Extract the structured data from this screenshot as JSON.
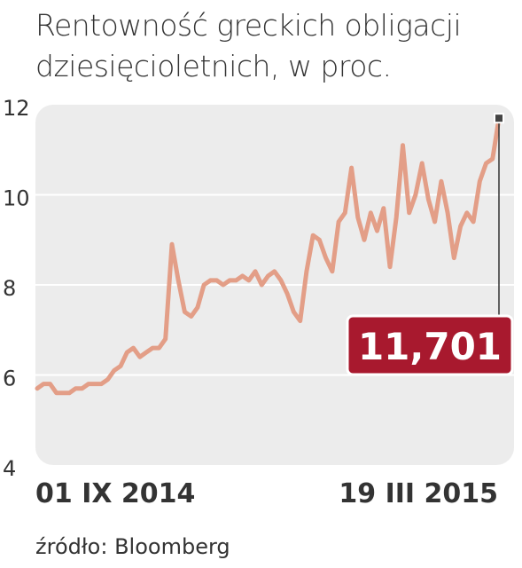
{
  "title": {
    "line1": "Rentowność greckich obligacji",
    "line2": "dziesięcioletnich, w proc."
  },
  "source": "źródło: Bloomberg",
  "colors": {
    "line": "#e39e87",
    "plot_bg": "#ececec",
    "grid": "#ffffff",
    "callout_bg": "#a8192e",
    "callout_text": "#ffffff",
    "text": "#333333"
  },
  "chart_data": {
    "type": "line",
    "title": "Rentowność greckich obligacji dziesięcioletnich, w proc.",
    "xlabel": "",
    "ylabel": "",
    "ylim": [
      4,
      12
    ],
    "yticks": [
      4,
      6,
      8,
      10,
      12
    ],
    "ytick_labels": [
      "4",
      "6",
      "8",
      "10",
      "12"
    ],
    "x_start_label": "01 IX 2014",
    "x_end_label": "19 III 2015",
    "x_range": [
      "2014-09-01",
      "2015-03-19"
    ],
    "grid": true,
    "callout": {
      "value": 11.701,
      "label": "11,701"
    },
    "series": [
      {
        "values": [
          5.7,
          5.8,
          5.8,
          5.6,
          5.6,
          5.6,
          5.7,
          5.7,
          5.8,
          5.8,
          5.8,
          5.9,
          6.1,
          6.2,
          6.5,
          6.6,
          6.4,
          6.5,
          6.6,
          6.6,
          6.8,
          8.9,
          8.1,
          7.4,
          7.3,
          7.5,
          8.0,
          8.1,
          8.1,
          8.0,
          8.1,
          8.1,
          8.2,
          8.1,
          8.3,
          8.0,
          8.2,
          8.3,
          8.1,
          7.8,
          7.4,
          7.2,
          8.3,
          9.1,
          9.0,
          8.6,
          8.3,
          9.4,
          9.6,
          10.6,
          9.5,
          9.0,
          9.6,
          9.2,
          9.7,
          8.4,
          9.5,
          11.1,
          9.6,
          10.0,
          10.7,
          9.9,
          9.4,
          10.3,
          9.6,
          8.6,
          9.3,
          9.6,
          9.4,
          10.3,
          10.7,
          10.8,
          11.701
        ]
      }
    ]
  }
}
